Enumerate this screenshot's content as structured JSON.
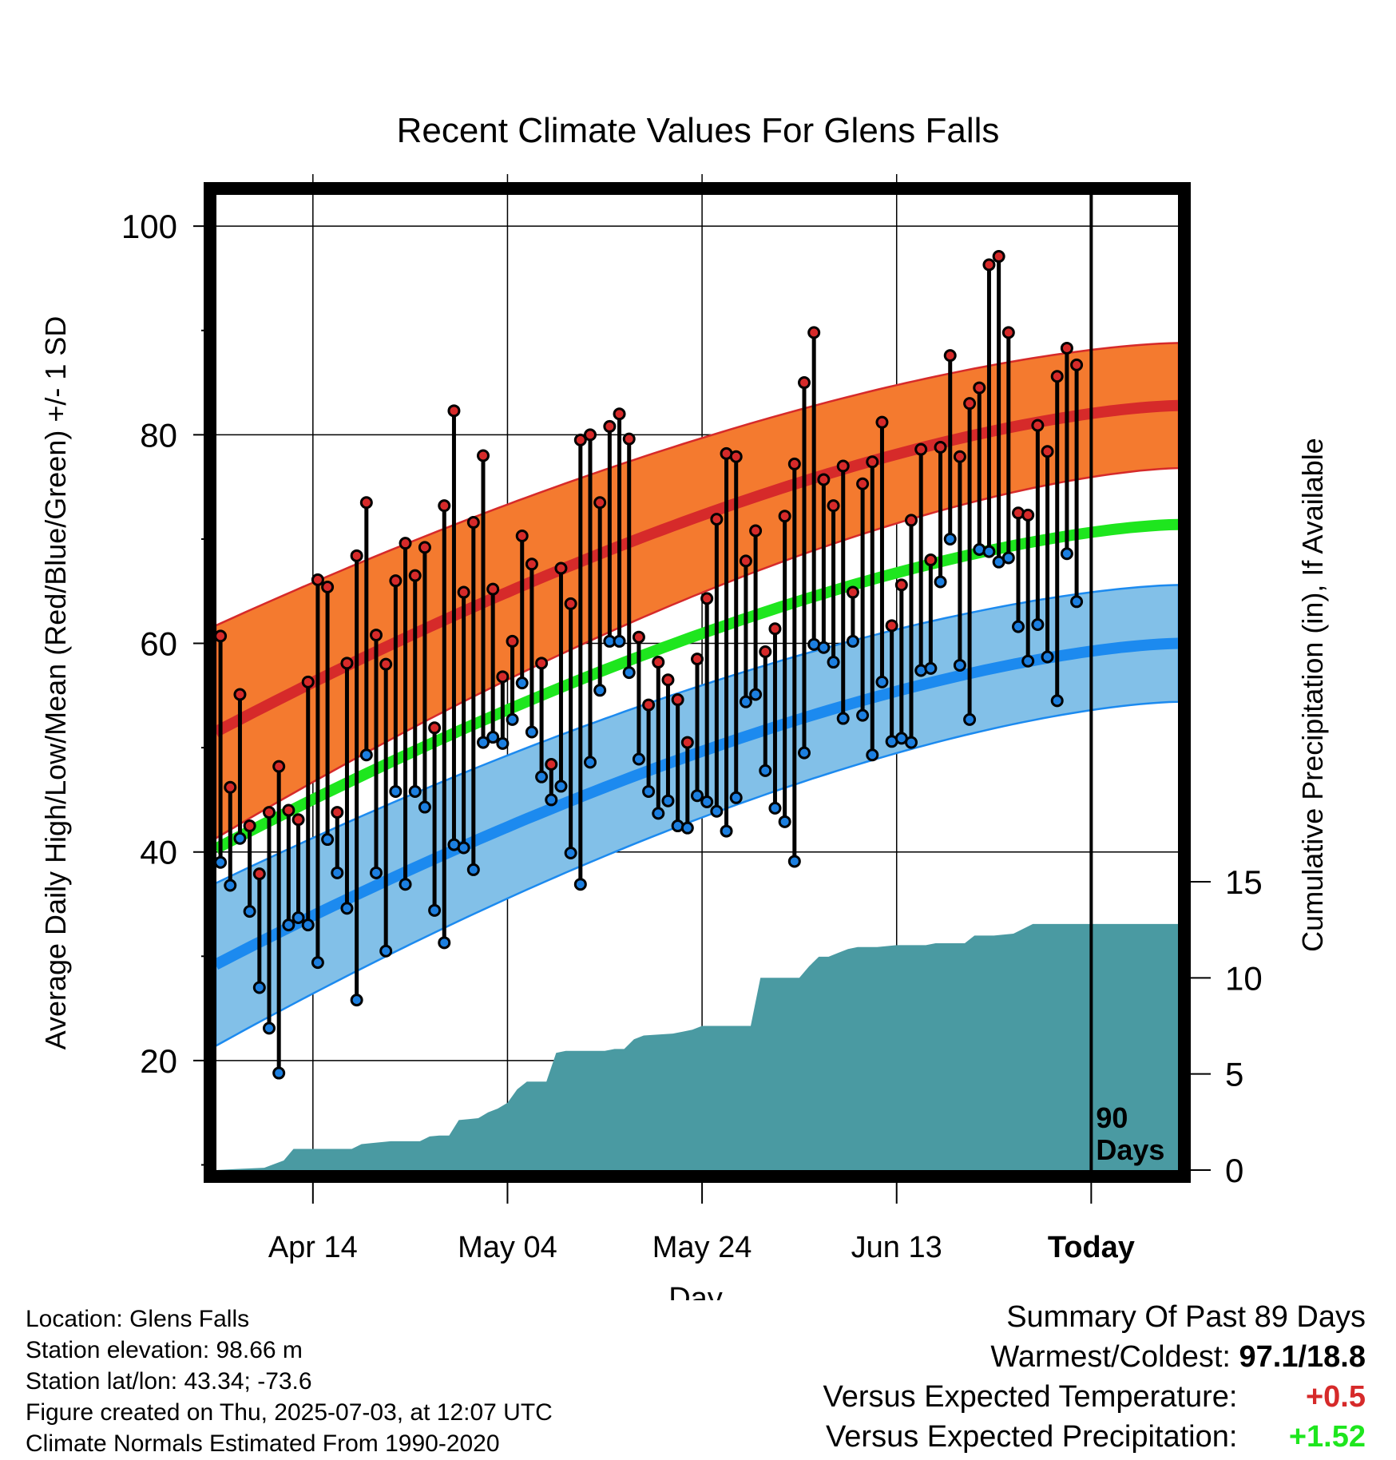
{
  "chart_data": {
    "type": "line",
    "title": "Recent Climate Values For Glens Falls",
    "xlabel": "Day",
    "ylabel_left": "Average Daily High/Low/Mean (Red/Blue/Green) +/- 1 SD",
    "ylabel_right": "Cumulative Precipitation (in), If Available",
    "x_ticks": [
      {
        "label": "Apr 14",
        "day": 10
      },
      {
        "label": "May 04",
        "day": 30
      },
      {
        "label": "May 24",
        "day": 50
      },
      {
        "label": "Jun 13",
        "day": 70
      },
      {
        "label": "Today",
        "day": 90
      }
    ],
    "xlim": [
      0,
      99
    ],
    "ylim": [
      9.5,
      103
    ],
    "y_ticks": [
      20,
      40,
      60,
      80,
      100
    ],
    "y_minor_ticks": [
      10,
      30,
      50,
      70,
      90
    ],
    "precip_ylim": [
      0,
      15
    ],
    "precip_ticks": [
      0,
      5,
      10,
      15
    ],
    "today_marker": {
      "day": 90,
      "label_line1": "90",
      "label_line2": "Days"
    },
    "normals": {
      "high_mean": {
        "day0": 51.5,
        "day99": 82.8
      },
      "high_sd": {
        "day0": 10.2,
        "day99": 6.0
      },
      "low_mean": {
        "day0": 29.2,
        "day99": 60.0
      },
      "low_sd": {
        "day0": 7.8,
        "day99": 5.6
      },
      "mean": {
        "day0": 40.3,
        "day99": 71.4
      }
    },
    "daily_high": [
      60.7,
      46.2,
      55.1,
      42.5,
      37.9,
      43.8,
      48.2,
      44.0,
      43.1,
      56.3,
      66.1,
      65.4,
      43.8,
      58.1,
      68.4,
      73.5,
      60.8,
      58.0,
      66.0,
      69.6,
      66.5,
      69.2,
      51.9,
      73.2,
      82.3,
      64.9,
      71.6,
      78.0,
      65.2,
      56.8,
      60.2,
      70.3,
      67.6,
      58.1,
      48.4,
      67.2,
      63.8,
      79.5,
      80.0,
      73.5,
      80.8,
      82.0,
      79.6,
      60.6,
      54.1,
      58.2,
      56.5,
      54.6,
      50.5,
      58.5,
      64.3,
      71.9,
      78.2,
      77.9,
      67.9,
      70.8,
      59.2,
      61.4,
      72.2,
      77.2,
      85.0,
      89.8,
      75.7,
      73.2,
      77.0,
      64.9,
      75.3,
      77.4,
      81.2,
      61.7,
      65.6,
      71.8,
      78.6,
      68.0,
      78.8,
      87.6,
      77.9,
      83.0,
      84.5,
      96.3,
      97.1,
      89.8,
      72.5,
      72.3,
      80.9,
      78.4,
      85.6,
      88.3,
      86.7
    ],
    "daily_low": [
      39.0,
      36.8,
      41.3,
      34.3,
      27.0,
      23.1,
      18.8,
      33.0,
      33.7,
      33.0,
      29.4,
      41.2,
      38.0,
      34.6,
      25.8,
      49.3,
      38.0,
      30.5,
      45.8,
      36.9,
      45.8,
      44.3,
      34.4,
      31.3,
      40.7,
      40.4,
      38.3,
      50.5,
      51.0,
      50.4,
      52.7,
      56.2,
      51.5,
      47.2,
      45.0,
      46.3,
      39.9,
      36.9,
      48.6,
      55.5,
      60.2,
      60.2,
      57.2,
      48.9,
      45.8,
      43.7,
      44.9,
      42.5,
      42.3,
      45.4,
      44.8,
      43.9,
      42.0,
      45.2,
      54.4,
      55.1,
      47.8,
      44.2,
      42.9,
      39.1,
      49.5,
      59.9,
      59.6,
      58.2,
      52.8,
      60.2,
      53.1,
      49.3,
      56.3,
      50.6,
      50.9,
      50.5,
      57.4,
      57.6,
      65.9,
      70.0,
      57.9,
      52.7,
      69.0,
      68.8,
      67.8,
      68.2,
      61.6,
      58.3,
      61.8,
      58.7,
      54.5,
      68.6,
      64.0
    ],
    "cumulative_precip": [
      [
        0,
        0
      ],
      [
        2,
        0.05
      ],
      [
        5,
        0.12
      ],
      [
        7,
        0.5
      ],
      [
        8,
        1.1
      ],
      [
        11,
        1.1
      ],
      [
        12,
        1.1
      ],
      [
        13,
        1.1
      ],
      [
        14,
        1.1
      ],
      [
        15,
        1.35
      ],
      [
        16,
        1.4
      ],
      [
        18,
        1.5
      ],
      [
        21,
        1.5
      ],
      [
        22,
        1.75
      ],
      [
        23,
        1.8
      ],
      [
        24,
        1.8
      ],
      [
        25,
        2.6
      ],
      [
        26,
        2.65
      ],
      [
        27,
        2.7
      ],
      [
        28,
        3.0
      ],
      [
        29,
        3.2
      ],
      [
        30,
        3.5
      ],
      [
        31,
        4.2
      ],
      [
        32,
        4.6
      ],
      [
        33,
        4.6
      ],
      [
        34,
        4.6
      ],
      [
        35,
        6.1
      ],
      [
        36,
        6.2
      ],
      [
        40,
        6.2
      ],
      [
        41,
        6.3
      ],
      [
        42,
        6.3
      ],
      [
        43,
        6.8
      ],
      [
        44,
        7.0
      ],
      [
        47,
        7.1
      ],
      [
        48,
        7.2
      ],
      [
        49,
        7.3
      ],
      [
        50,
        7.5
      ],
      [
        54,
        7.5
      ],
      [
        55,
        7.5
      ],
      [
        56,
        10.0
      ],
      [
        57,
        10.0
      ],
      [
        60,
        10.0
      ],
      [
        61,
        10.6
      ],
      [
        62,
        11.1
      ],
      [
        63,
        11.1
      ],
      [
        64,
        11.3
      ],
      [
        65,
        11.5
      ],
      [
        66,
        11.6
      ],
      [
        68,
        11.6
      ],
      [
        70,
        11.7
      ],
      [
        73,
        11.7
      ],
      [
        74,
        11.8
      ],
      [
        77,
        11.8
      ],
      [
        78,
        12.2
      ],
      [
        80,
        12.2
      ],
      [
        82,
        12.3
      ],
      [
        84,
        12.8
      ],
      [
        86,
        12.8
      ],
      [
        99,
        12.8
      ]
    ]
  },
  "footer": {
    "location": "Location: Glens Falls",
    "elevation": "Station elevation: 98.66 m",
    "latlon": "Station lat/lon: 43.34; -73.6",
    "created": "Figure created on Thu, 2025-07-03, at 12:07 UTC",
    "normals_period": "Climate Normals Estimated From 1990-2020"
  },
  "summary": {
    "title": "Summary Of Past 89 Days",
    "warmest_coldest_label": "Warmest/Coldest:",
    "warmest_coldest_value": "97.1/18.8",
    "temp_label": "Versus Expected Temperature:",
    "temp_value": "+0.5",
    "precip_label": "Versus Expected Precipitation:",
    "precip_value": "+1.52"
  },
  "colors": {
    "high_band": "#f47a2f",
    "high_line": "#d62a2a",
    "low_band": "#82c0e8",
    "low_line": "#1c8aef",
    "mean_line": "#1ee61e",
    "precip_fill": "#4a9aa2",
    "high_dot": "#d62a2a",
    "low_dot": "#1c7fe0",
    "temp_delta": "#d62a2a",
    "precip_delta": "#1ee61e"
  }
}
